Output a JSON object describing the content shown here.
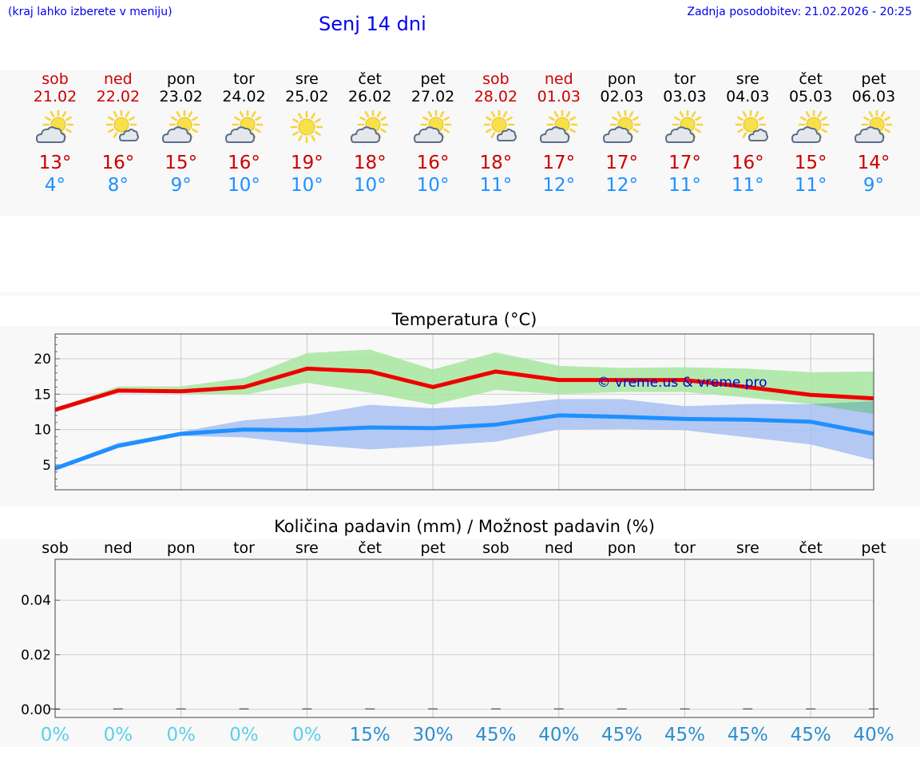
{
  "header": {
    "hint": "(kraj lahko izberete v meniju)",
    "title": "Senj 14 dni",
    "updated": "Zadnja posodobitev: 21.02.2026 - 20:25"
  },
  "days": [
    {
      "name": "sob",
      "date": "21.02",
      "weekend": true,
      "icon": "partly-cloudy-icon",
      "tmax": "13°",
      "tmin": "4°"
    },
    {
      "name": "ned",
      "date": "22.02",
      "weekend": true,
      "icon": "sun-behind-small-cloud-icon",
      "tmax": "16°",
      "tmin": "8°"
    },
    {
      "name": "pon",
      "date": "23.02",
      "weekend": false,
      "icon": "partly-cloudy-icon",
      "tmax": "15°",
      "tmin": "9°"
    },
    {
      "name": "tor",
      "date": "24.02",
      "weekend": false,
      "icon": "partly-cloudy-icon",
      "tmax": "16°",
      "tmin": "10°"
    },
    {
      "name": "sre",
      "date": "25.02",
      "weekend": false,
      "icon": "sun-icon",
      "tmax": "19°",
      "tmin": "10°"
    },
    {
      "name": "čet",
      "date": "26.02",
      "weekend": false,
      "icon": "partly-cloudy-icon",
      "tmax": "18°",
      "tmin": "10°"
    },
    {
      "name": "pet",
      "date": "27.02",
      "weekend": false,
      "icon": "partly-cloudy-icon",
      "tmax": "16°",
      "tmin": "10°"
    },
    {
      "name": "sob",
      "date": "28.02",
      "weekend": true,
      "icon": "sun-behind-small-cloud-icon",
      "tmax": "18°",
      "tmin": "11°"
    },
    {
      "name": "ned",
      "date": "01.03",
      "weekend": true,
      "icon": "partly-cloudy-icon",
      "tmax": "17°",
      "tmin": "12°"
    },
    {
      "name": "pon",
      "date": "02.03",
      "weekend": false,
      "icon": "partly-cloudy-icon",
      "tmax": "17°",
      "tmin": "12°"
    },
    {
      "name": "tor",
      "date": "03.03",
      "weekend": false,
      "icon": "partly-cloudy-icon",
      "tmax": "17°",
      "tmin": "11°"
    },
    {
      "name": "sre",
      "date": "04.03",
      "weekend": false,
      "icon": "sun-behind-small-cloud-icon",
      "tmax": "16°",
      "tmin": "11°"
    },
    {
      "name": "čet",
      "date": "05.03",
      "weekend": false,
      "icon": "partly-cloudy-icon",
      "tmax": "15°",
      "tmin": "11°"
    },
    {
      "name": "pet",
      "date": "06.03",
      "weekend": false,
      "icon": "partly-cloudy-icon",
      "tmax": "14°",
      "tmin": "9°"
    }
  ],
  "colors": {
    "weekend": "#cc0000",
    "weekday": "#000000",
    "max_line": "#ee0000",
    "min_line": "#1e90ff",
    "max_band": "#a8e6a0",
    "min_band": "#a7c0f2",
    "overlap_band": "#7fc4a8",
    "watermark": "#0000cc",
    "prob_low": "#5bd0e8",
    "prob_high": "#2a8fd0"
  },
  "chart_data": [
    {
      "type": "line",
      "title": "Temperatura (°C)",
      "xlabel": "",
      "ylabel": "",
      "ylim": [
        1.5,
        23.5
      ],
      "yticks": [
        "5",
        "10",
        "15",
        "20"
      ],
      "x": [
        0,
        1,
        2,
        3,
        4,
        5,
        6,
        7,
        8,
        9,
        10,
        11,
        12,
        13
      ],
      "watermark": "© vreme.us & vreme.pro",
      "series": [
        {
          "name": "max",
          "values": [
            12.8,
            15.5,
            15.4,
            16.0,
            18.6,
            18.2,
            16.0,
            18.2,
            17.0,
            17.0,
            17.0,
            16.0,
            14.9,
            14.4
          ]
        },
        {
          "name": "min",
          "values": [
            4.5,
            7.7,
            9.4,
            10.0,
            9.9,
            10.3,
            10.2,
            10.7,
            12.0,
            11.8,
            11.5,
            11.4,
            11.1,
            9.4
          ]
        },
        {
          "name": "max_range_low",
          "values": [
            12.4,
            15.3,
            15.1,
            14.9,
            16.6,
            15.2,
            13.5,
            15.6,
            15.0,
            15.3,
            15.3,
            14.5,
            13.6,
            12.2
          ]
        },
        {
          "name": "max_range_high",
          "values": [
            13.0,
            16.1,
            16.1,
            17.3,
            20.8,
            21.3,
            18.5,
            20.9,
            19.0,
            18.7,
            18.8,
            18.6,
            18.1,
            18.2
          ]
        },
        {
          "name": "min_range_low",
          "values": [
            4.2,
            7.4,
            9.1,
            8.9,
            7.9,
            7.2,
            7.7,
            8.3,
            10.0,
            10.1,
            9.9,
            8.9,
            7.9,
            5.7
          ]
        },
        {
          "name": "min_range_high",
          "values": [
            4.8,
            8.1,
            9.7,
            11.3,
            12.0,
            13.5,
            13.0,
            13.4,
            14.3,
            14.3,
            13.3,
            13.6,
            13.6,
            14.0
          ]
        }
      ]
    },
    {
      "type": "bar",
      "title": "Količina padavin (mm) / Možnost padavin (%)",
      "categories": [
        "sob",
        "ned",
        "pon",
        "tor",
        "sre",
        "čet",
        "pet",
        "sob",
        "ned",
        "pon",
        "tor",
        "sre",
        "čet",
        "pet"
      ],
      "ylim": [
        -0.003,
        0.055
      ],
      "yticks": [
        "0.00",
        "0.02",
        "0.04"
      ],
      "values": [
        0,
        0,
        0,
        0,
        0,
        0,
        0,
        0,
        0,
        0,
        0,
        0,
        0,
        0
      ],
      "probability": [
        "0%",
        "0%",
        "0%",
        "0%",
        "0%",
        "15%",
        "30%",
        "45%",
        "40%",
        "45%",
        "45%",
        "45%",
        "45%",
        "40%"
      ],
      "probability_values": [
        0,
        0,
        0,
        0,
        0,
        15,
        30,
        45,
        40,
        45,
        45,
        45,
        45,
        40
      ]
    }
  ]
}
